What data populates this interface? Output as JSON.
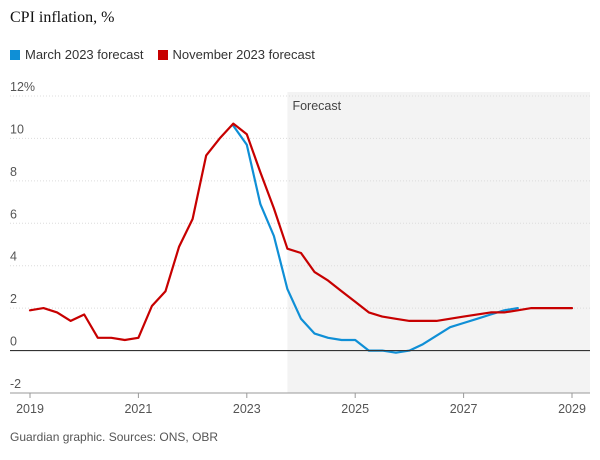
{
  "chart_data": {
    "type": "line",
    "title": "CPI inflation, %",
    "source": "Guardian graphic. Sources: ONS, OBR",
    "forecast_label": "Forecast",
    "forecast_start": 2023.75,
    "xlim": [
      2019,
      2029
    ],
    "ylim": [
      -2,
      12
    ],
    "y_ticks": [
      -2,
      0,
      2,
      4,
      6,
      8,
      10,
      12
    ],
    "y_tick_labels": [
      "-2",
      "0",
      "2",
      "4",
      "6",
      "8",
      "10",
      "12%"
    ],
    "x_ticks": [
      2019,
      2021,
      2023,
      2025,
      2027,
      2029
    ],
    "x_tick_labels": [
      "2019",
      "2021",
      "2023",
      "2025",
      "2027",
      "2029"
    ],
    "legend_position": "top-left",
    "series": [
      {
        "name": "March 2023 forecast",
        "color": "#0f8fd6",
        "points": [
          [
            2022.75,
            10.6
          ],
          [
            2023.0,
            9.7
          ],
          [
            2023.25,
            6.9
          ],
          [
            2023.5,
            5.4
          ],
          [
            2023.75,
            2.9
          ],
          [
            2024.0,
            1.5
          ],
          [
            2024.25,
            0.8
          ],
          [
            2024.5,
            0.6
          ],
          [
            2024.75,
            0.5
          ],
          [
            2025.0,
            0.5
          ],
          [
            2025.25,
            0.0
          ],
          [
            2025.5,
            0.0
          ],
          [
            2025.75,
            -0.1
          ],
          [
            2026.0,
            0.0
          ],
          [
            2026.25,
            0.3
          ],
          [
            2026.5,
            0.7
          ],
          [
            2026.75,
            1.1
          ],
          [
            2027.0,
            1.3
          ],
          [
            2027.25,
            1.5
          ],
          [
            2027.5,
            1.7
          ],
          [
            2027.75,
            1.9
          ],
          [
            2028.0,
            2.0
          ]
        ]
      },
      {
        "name": "November 2023 forecast",
        "color": "#c70000",
        "points": [
          [
            2019.0,
            1.9
          ],
          [
            2019.25,
            2.0
          ],
          [
            2019.5,
            1.8
          ],
          [
            2019.75,
            1.4
          ],
          [
            2020.0,
            1.7
          ],
          [
            2020.25,
            0.6
          ],
          [
            2020.5,
            0.6
          ],
          [
            2020.75,
            0.5
          ],
          [
            2021.0,
            0.6
          ],
          [
            2021.25,
            2.1
          ],
          [
            2021.5,
            2.8
          ],
          [
            2021.75,
            4.9
          ],
          [
            2022.0,
            6.2
          ],
          [
            2022.25,
            9.2
          ],
          [
            2022.5,
            10.0
          ],
          [
            2022.75,
            10.7
          ],
          [
            2023.0,
            10.2
          ],
          [
            2023.25,
            8.4
          ],
          [
            2023.5,
            6.7
          ],
          [
            2023.75,
            4.8
          ],
          [
            2024.0,
            4.6
          ],
          [
            2024.25,
            3.7
          ],
          [
            2024.5,
            3.3
          ],
          [
            2024.75,
            2.8
          ],
          [
            2025.0,
            2.3
          ],
          [
            2025.25,
            1.8
          ],
          [
            2025.5,
            1.6
          ],
          [
            2025.75,
            1.5
          ],
          [
            2026.0,
            1.4
          ],
          [
            2026.5,
            1.4
          ],
          [
            2027.0,
            1.6
          ],
          [
            2027.5,
            1.8
          ],
          [
            2027.75,
            1.8
          ],
          [
            2028.0,
            1.9
          ],
          [
            2028.25,
            2.0
          ],
          [
            2029.0,
            2.0
          ]
        ]
      }
    ]
  }
}
